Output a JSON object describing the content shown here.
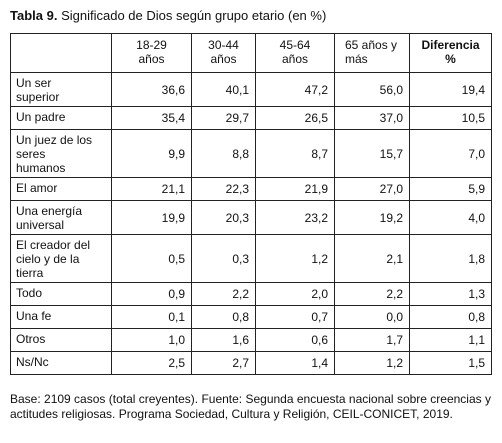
{
  "title": {
    "label": "Tabla 9.",
    "text": "Significado de Dios según grupo etario (en %)"
  },
  "table": {
    "header": [
      "",
      "18-29\naños",
      "30-44\naños",
      "45-64\naños",
      "65 años y\nmás",
      "Diferencia\n%"
    ],
    "rows": [
      [
        "Un ser\nsuperior",
        "36,6",
        "40,1",
        "47,2",
        "56,0",
        "19,4"
      ],
      [
        "Un padre",
        "35,4",
        "29,7",
        "26,5",
        "37,0",
        "10,5"
      ],
      [
        "Un juez de los\nseres\nhumanos",
        "9,9",
        "8,8",
        "8,7",
        "15,7",
        "7,0"
      ],
      [
        "El amor",
        "21,1",
        "22,3",
        "21,9",
        "27,0",
        "5,9"
      ],
      [
        "Una energía\nuniversal",
        "19,9",
        "20,3",
        "23,2",
        "19,2",
        "4,0"
      ],
      [
        "El creador del\ncielo y de la\ntierra",
        "0,5",
        "0,3",
        "1,2",
        "2,1",
        "1,8"
      ],
      [
        "Todo",
        "0,9",
        "2,2",
        "2,0",
        "2,2",
        "1,3"
      ],
      [
        "Una fe",
        "0,1",
        "0,8",
        "0,7",
        "0,0",
        "0,8"
      ],
      [
        "Otros",
        "1,0",
        "1,6",
        "0,6",
        "1,7",
        "1,1"
      ],
      [
        "Ns/Nc",
        "2,5",
        "2,7",
        "1,4",
        "1,2",
        "1,5"
      ]
    ]
  },
  "footnote": "Base: 2109 casos (total creyentes). Fuente: Segunda encuesta nacional sobre creencias y actitudes religiosas. Programa Sociedad, Cultura y Religión, CEIL-CONICET, 2019."
}
